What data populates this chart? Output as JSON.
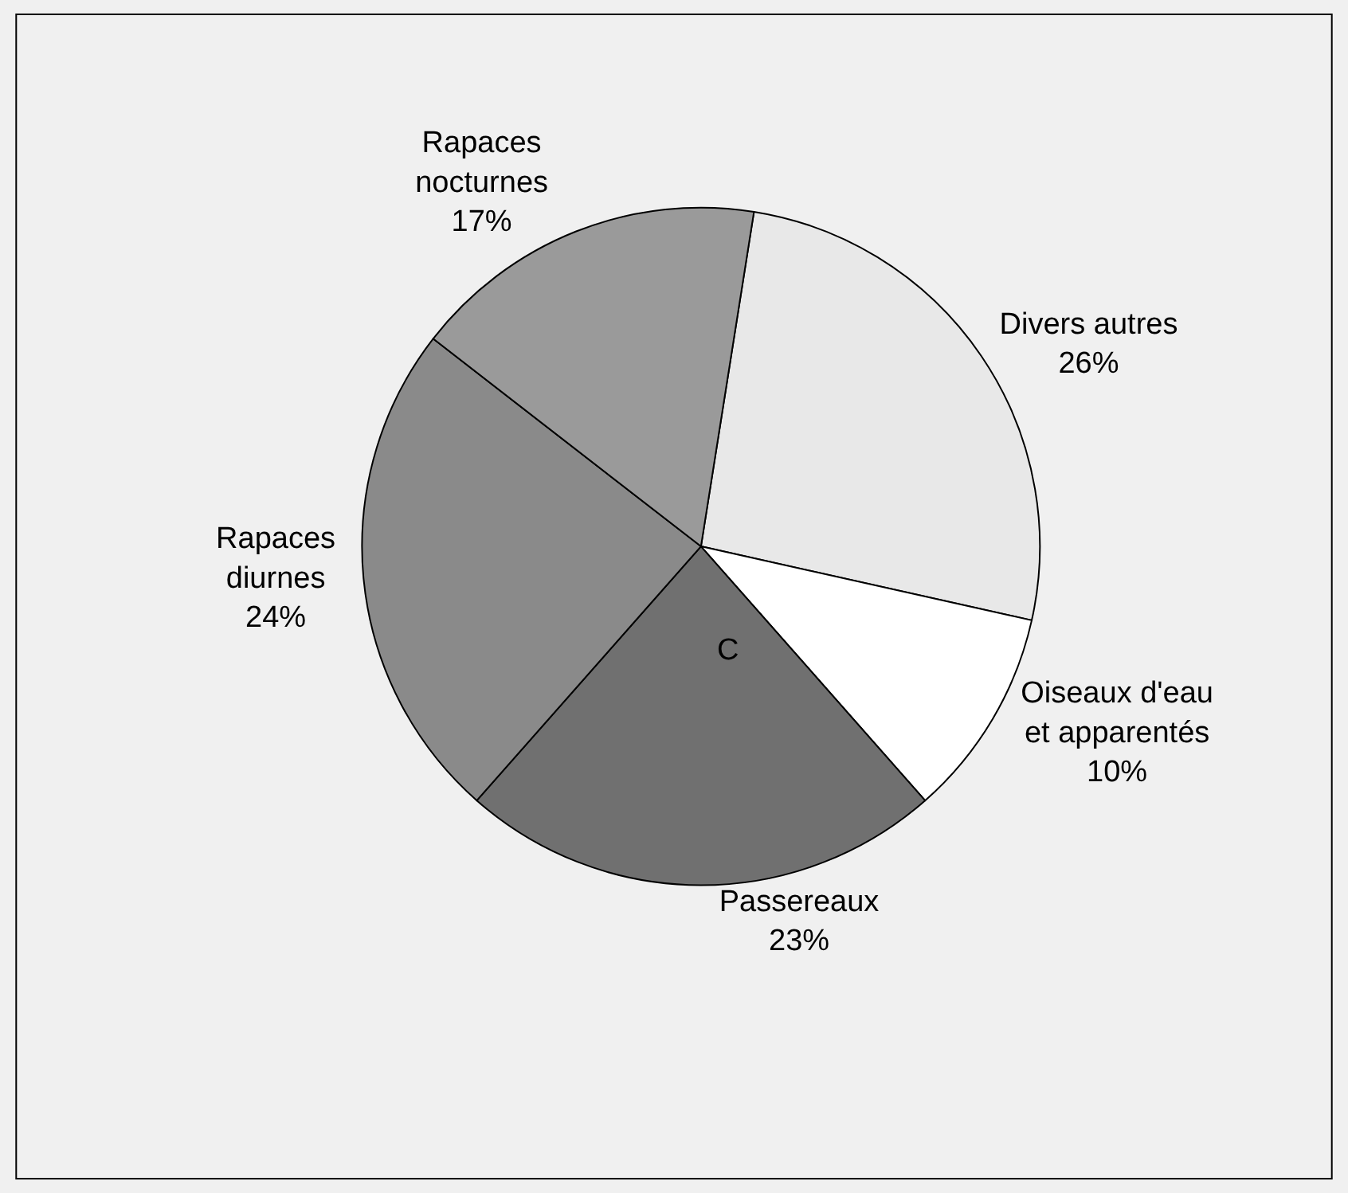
{
  "chart_data": {
    "type": "pie",
    "categories": [
      "Divers autres",
      "Oiseaux d'eau et apparentés",
      "Passereaux",
      "Rapaces diurnes",
      "Rapaces nocturnes"
    ],
    "values": [
      26,
      10,
      23,
      24,
      17
    ],
    "colors": [
      "#e8e8e8",
      "#ffffff",
      "#707070",
      "#8a8a8a",
      "#9a9a9a"
    ],
    "annotations": [
      "C"
    ],
    "value_labels": [
      "26%",
      "10%",
      "23%",
      "24%",
      "17%"
    ],
    "legend": false
  }
}
